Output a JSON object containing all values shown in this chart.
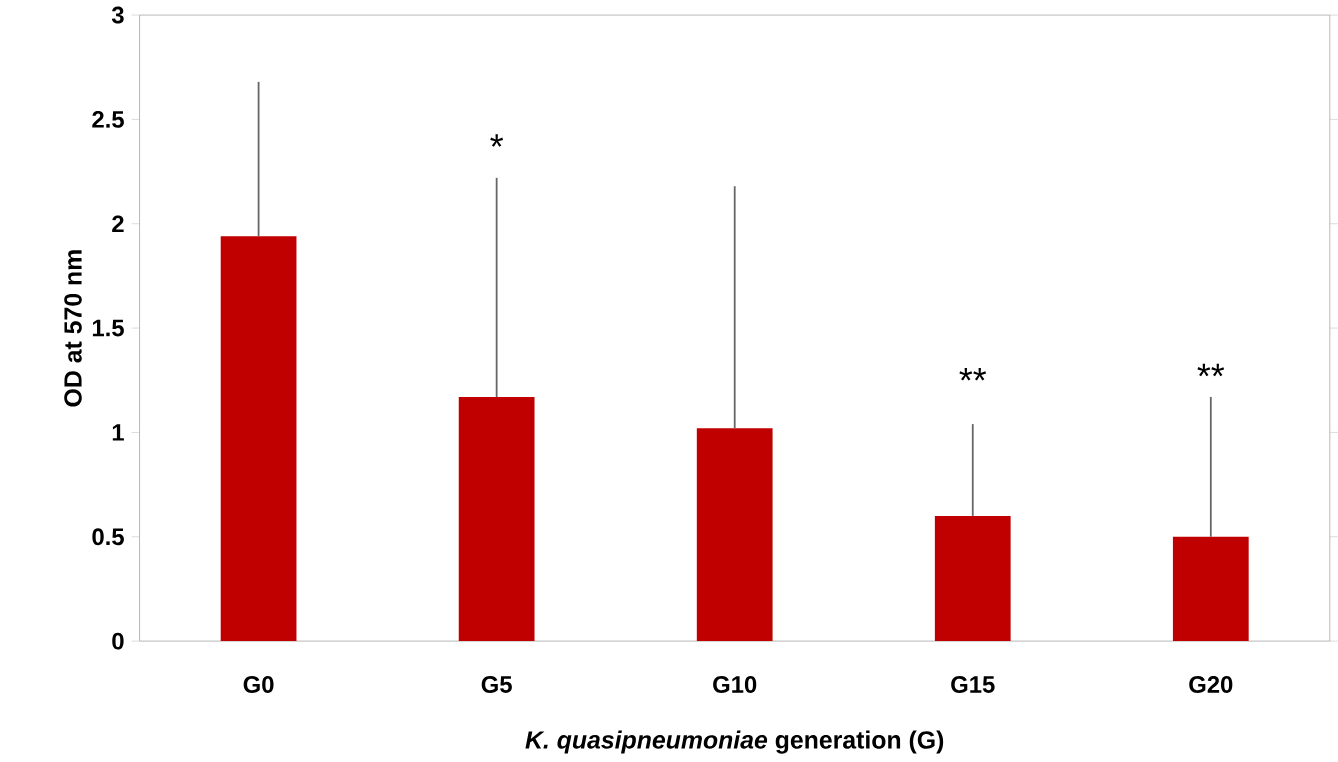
{
  "chart_data": {
    "type": "bar",
    "xlabel": "*K. quasipneumoniae* generation (G)",
    "ylabel": "OD at 570 nm",
    "categories": [
      "G0",
      "G5",
      "G10",
      "G15",
      "G20"
    ],
    "values": [
      1.94,
      1.17,
      1.02,
      0.6,
      0.5
    ],
    "errors": [
      [
        1.94,
        2.68
      ],
      [
        1.17,
        2.22
      ],
      [
        1.02,
        2.18
      ],
      [
        0.6,
        1.04
      ],
      [
        0.5,
        1.17
      ]
    ],
    "color": "#c00000",
    "ylim": [
      0,
      3
    ],
    "yticks": [
      0,
      0.5,
      1,
      1.5,
      2,
      2.5,
      3
    ],
    "grid": false,
    "annotations": [
      "*",
      "**",
      "**"
    ]
  }
}
